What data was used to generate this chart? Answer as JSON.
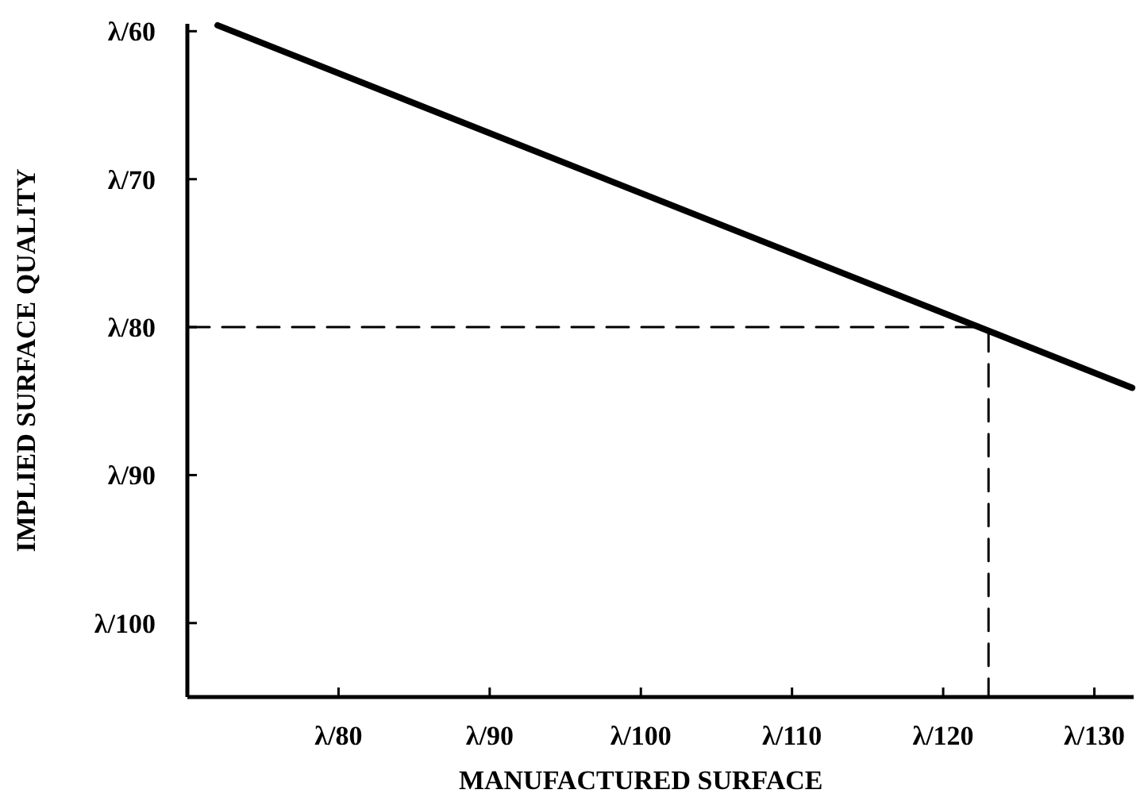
{
  "chart_data": {
    "type": "line",
    "xlabel": "MANUFACTURED SURFACE",
    "ylabel": "IMPLIED SURFACE QUALITY",
    "xlim": [
      70,
      132.6
    ],
    "ylim": [
      105,
      59.5
    ],
    "xticks": [
      {
        "value": 80,
        "label": "λ/80"
      },
      {
        "value": 90,
        "label": "λ/90"
      },
      {
        "value": 100,
        "label": "λ/100"
      },
      {
        "value": 110,
        "label": "λ/110"
      },
      {
        "value": 120,
        "label": "λ/120"
      },
      {
        "value": 130,
        "label": "λ/130"
      }
    ],
    "yticks": [
      {
        "value": 60,
        "label": "λ/60"
      },
      {
        "value": 70,
        "label": "λ/70"
      },
      {
        "value": 80,
        "label": "λ/80"
      },
      {
        "value": 90,
        "label": "λ/90"
      },
      {
        "value": 100,
        "label": "λ/100"
      }
    ],
    "grid": false,
    "marker": "none",
    "series": [
      {
        "color": "#000000",
        "x": [
          72,
          132.5
        ],
        "values": [
          59.6,
          84.1
        ],
        "line_style": "solid"
      },
      {
        "color": "#000000",
        "x": [
          70,
          123,
          123
        ],
        "values": [
          80,
          80,
          105
        ],
        "line_style": "dashed"
      }
    ]
  }
}
